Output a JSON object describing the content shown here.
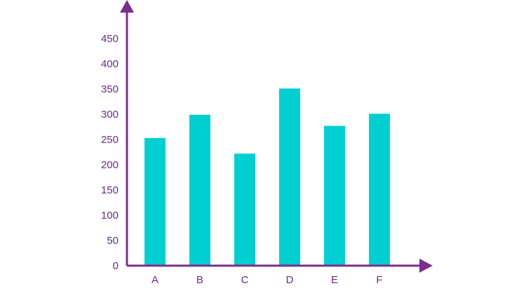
{
  "colors": {
    "axis": "#7a2e8f",
    "bar": "#00cfd1",
    "text": "#6b2a86",
    "background": "#ffffff"
  },
  "chart_data": {
    "type": "bar",
    "title": "",
    "xlabel": "",
    "ylabel": "",
    "categories": [
      "A",
      "B",
      "C",
      "D",
      "E",
      "F"
    ],
    "values": [
      253,
      299,
      222,
      351,
      277,
      301
    ],
    "ylim": [
      0,
      450
    ],
    "yticks": [
      0,
      50,
      100,
      150,
      200,
      250,
      300,
      350,
      400,
      450
    ],
    "grid": false,
    "legend": "none"
  }
}
